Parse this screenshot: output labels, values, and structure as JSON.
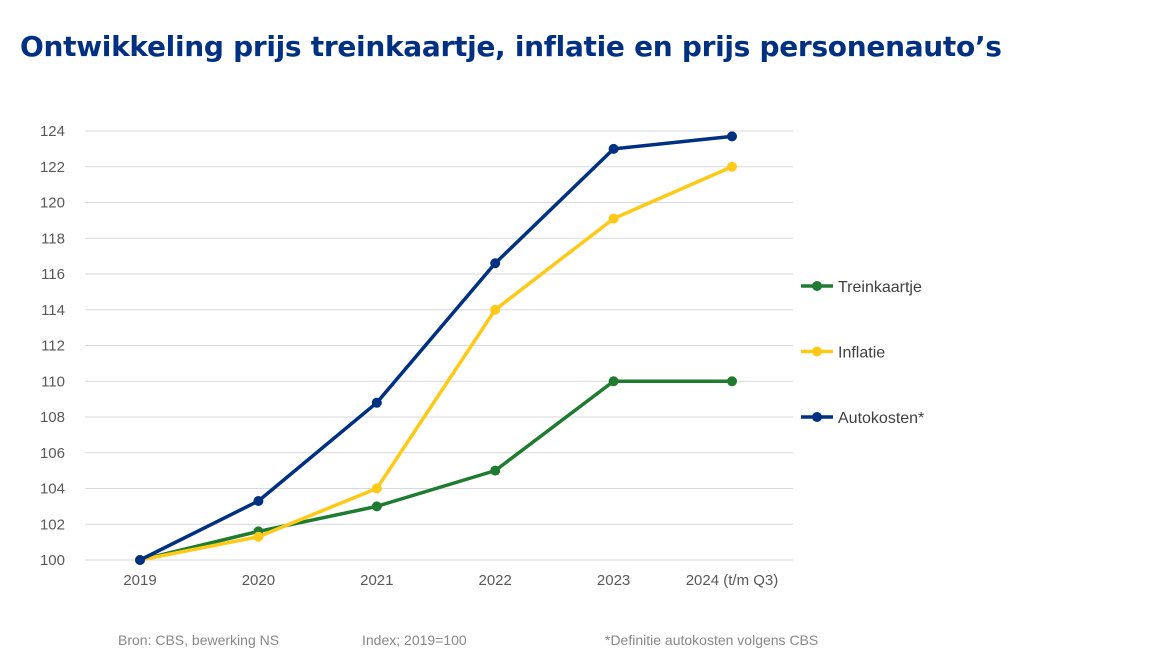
{
  "title": "Ontwikkeling prijs treinkaartje, inflatie en prijs personenauto’s",
  "chart_data": {
    "type": "line",
    "title": "Ontwikkeling prijs treinkaartje, inflatie en prijs personenauto’s",
    "categories": [
      "2019",
      "2020",
      "2021",
      "2022",
      "2023",
      "2024 (t/m Q3)"
    ],
    "ylim": [
      100,
      124
    ],
    "yticks": [
      100,
      102,
      104,
      106,
      108,
      110,
      112,
      114,
      116,
      118,
      120,
      122,
      124
    ],
    "grid": true,
    "legend_position": "right",
    "series": [
      {
        "name": "Treinkaartje",
        "color": "#1e7b30",
        "values": [
          100,
          101.6,
          103.0,
          105.0,
          110.0,
          110.0
        ]
      },
      {
        "name": "Inflatie",
        "color": "#ffc917",
        "values": [
          100,
          101.3,
          104.0,
          114.0,
          119.1,
          122.0
        ]
      },
      {
        "name": "Autokosten*",
        "color": "#003082",
        "values": [
          100,
          103.3,
          108.8,
          116.6,
          123.0,
          123.7
        ]
      }
    ]
  },
  "footer": {
    "source": "Bron: CBS, bewerking NS",
    "index": "Index; 2019=100",
    "note": "*Definitie autokosten volgens CBS"
  }
}
